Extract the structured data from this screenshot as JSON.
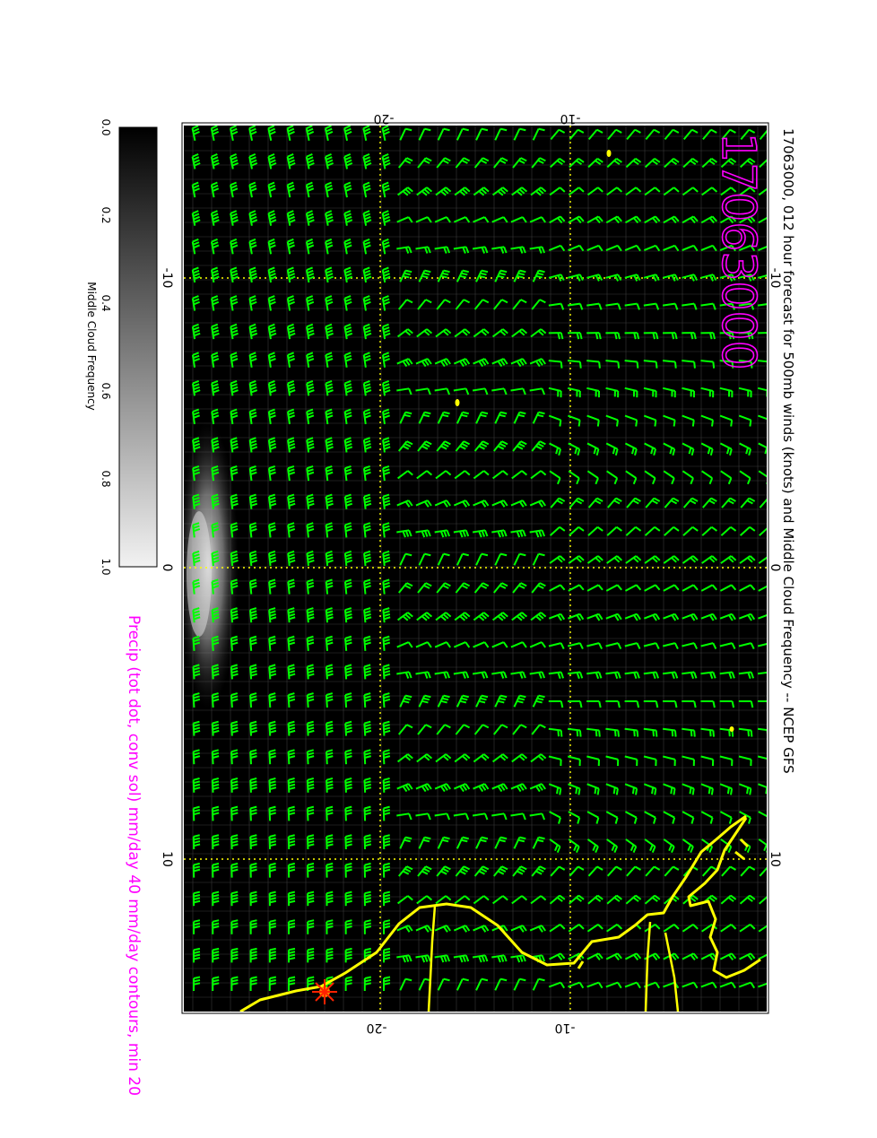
{
  "title": "17063000, 012 hour forecast for 500mb winds (knots) and Middle Cloud Frequency -- NCEP GFS",
  "date_stamp": "17063000",
  "precip_caption": "Precip (tot dot, conv sol) mm/day 40 mm/day contours, min 20",
  "colorbar": {
    "label": "Middle Cloud Frequency",
    "ticks": [
      "0.0",
      "0.2",
      "0.4",
      "0.6",
      "0.8",
      "1.0"
    ]
  },
  "map": {
    "lon_ticks": [
      "-10",
      "0",
      "10"
    ],
    "lat_ticks": [
      "-20",
      "-10"
    ],
    "colors": {
      "background": "#000000",
      "wind_barbs": "#00ff00",
      "coastline": "#ffff00",
      "gridlines": "#ffff00",
      "label_magenta": "#ff00ff",
      "storm_marker": "#ff2200"
    },
    "storm_marker_icon": "asterisk-star-icon"
  }
}
